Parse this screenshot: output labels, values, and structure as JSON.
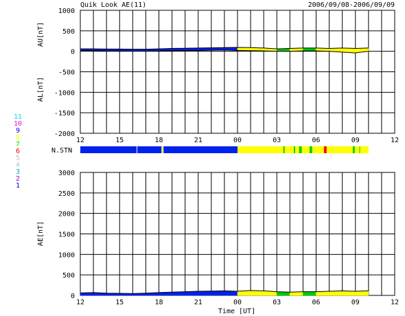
{
  "header": {
    "title": "Quik Look AE(11)",
    "date_range": "2006/09/08-2006/09/09"
  },
  "station_legend": {
    "entries": [
      {
        "label": "11",
        "color": "#00e5e5"
      },
      {
        "label": "10",
        "color": "#ff00ff"
      },
      {
        "label": "9",
        "color": "#0000ff"
      },
      {
        "label": "8",
        "color": "#ffff00"
      },
      {
        "label": "7",
        "color": "#00e000"
      },
      {
        "label": "6",
        "color": "#ff0000"
      },
      {
        "label": "5",
        "color": "#c0c0c0"
      },
      {
        "label": "4",
        "color": "#c0c0c0"
      },
      {
        "label": "3",
        "color": "#00b0b0"
      },
      {
        "label": "2",
        "color": "#b000b0"
      },
      {
        "label": "1",
        "color": "#0000c0"
      }
    ]
  },
  "colors": {
    "blue": "#0022ee",
    "yellow": "#ffff00",
    "green": "#00cc00",
    "red": "#ff0000"
  },
  "chart_data": [
    {
      "type": "area",
      "panel": "AU/AL",
      "ylabel_top": "AU[nT]",
      "ylabel_bottom": "AL[nT]",
      "ylim": [
        -2000,
        1000
      ],
      "yticks": [
        "1000",
        "500",
        "0",
        "-500",
        "-1000",
        "-1500",
        "-2000"
      ],
      "xlim": [
        12,
        36
      ],
      "xticks": [
        "12",
        "15",
        "18",
        "21",
        "00",
        "03",
        "06",
        "09",
        "12"
      ],
      "grid": true,
      "x": [
        12,
        13,
        14,
        15,
        16,
        17,
        18,
        19,
        20,
        21,
        22,
        23,
        24,
        25,
        26,
        27,
        28,
        29,
        30,
        31,
        32,
        33,
        34
      ],
      "series": [
        {
          "values_au": [
            60,
            60,
            55,
            55,
            50,
            50,
            60,
            70,
            75,
            80,
            85,
            90,
            95,
            90,
            80,
            60,
            70,
            80,
            80,
            70,
            80,
            70,
            80
          ]
        },
        {
          "values_al": [
            20,
            15,
            10,
            10,
            5,
            5,
            10,
            15,
            20,
            20,
            25,
            30,
            20,
            15,
            10,
            0,
            0,
            10,
            10,
            0,
            -20,
            -40,
            0
          ]
        }
      ]
    },
    {
      "type": "bar",
      "panel": "N.STN",
      "label": "N.STN",
      "xlim": [
        12,
        36
      ],
      "segments": [
        {
          "x0": 12,
          "x1": 16.3,
          "color": "blue"
        },
        {
          "x0": 16.35,
          "x1": 18.2,
          "color": "blue"
        },
        {
          "x0": 18.2,
          "x1": 18.3,
          "color": "yellow"
        },
        {
          "x0": 18.35,
          "x1": 24,
          "color": "blue"
        },
        {
          "x0": 24,
          "x1": 34,
          "color": "yellow"
        },
        {
          "x0": 27.5,
          "x1": 27.6,
          "color": "green"
        },
        {
          "x0": 28.3,
          "x1": 28.4,
          "color": "green"
        },
        {
          "x0": 28.7,
          "x1": 28.9,
          "color": "green"
        },
        {
          "x0": 29.5,
          "x1": 29.7,
          "color": "green"
        },
        {
          "x0": 30.6,
          "x1": 30.8,
          "color": "red"
        },
        {
          "x0": 32.8,
          "x1": 32.95,
          "color": "green"
        },
        {
          "x0": 33.3,
          "x1": 33.35,
          "color": "green"
        }
      ]
    },
    {
      "type": "area",
      "panel": "AE",
      "ylabel": "AE[nT]",
      "xlabel": "Time [UT]",
      "ylim": [
        0,
        3000
      ],
      "yticks": [
        "3000",
        "2500",
        "2000",
        "1500",
        "1000",
        "500",
        "0"
      ],
      "xlim": [
        12,
        36
      ],
      "xticks": [
        "12",
        "15",
        "18",
        "21",
        "00",
        "03",
        "06",
        "09",
        "12"
      ],
      "grid": true,
      "x": [
        12,
        13,
        14,
        15,
        16,
        17,
        18,
        19,
        20,
        21,
        22,
        23,
        24,
        25,
        26,
        27,
        28,
        29,
        30,
        31,
        32,
        33,
        34
      ],
      "values": [
        60,
        70,
        55,
        50,
        45,
        55,
        70,
        80,
        90,
        100,
        105,
        110,
        100,
        120,
        110,
        90,
        80,
        90,
        90,
        100,
        110,
        100,
        110
      ]
    }
  ]
}
